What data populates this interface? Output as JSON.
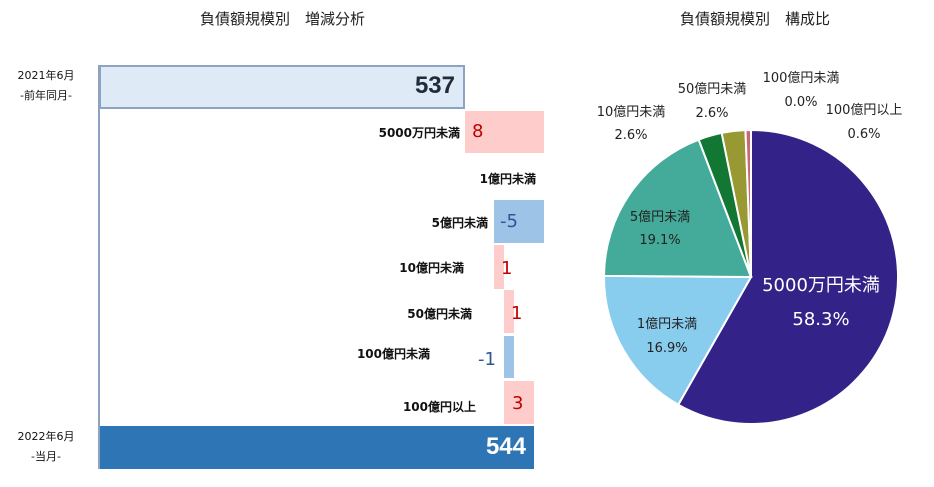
{
  "waterfall": {
    "title": "負債額規模別　増減分析",
    "start": {
      "period": "2021年6月",
      "sub": "-前年同月-",
      "value": "537"
    },
    "end": {
      "period": "2022年6月",
      "sub": "-当月-",
      "value": "544"
    },
    "steps": [
      {
        "label": "5000万円未満",
        "value": "8"
      },
      {
        "label": "1億円未満",
        "value": ""
      },
      {
        "label": "5億円未満",
        "value": "-5"
      },
      {
        "label": "10億円未満",
        "value": "1"
      },
      {
        "label": "50億円未満",
        "value": "1"
      },
      {
        "label": "100億円未満",
        "value": "-1"
      },
      {
        "label": "100億円以上",
        "value": "3"
      }
    ]
  },
  "pie": {
    "title": "負債額規模別　構成比",
    "slices": [
      {
        "label": "5000万円未満",
        "pct": "58.3%",
        "color": "#332288"
      },
      {
        "label": "1億円未満",
        "pct": "16.9%",
        "color": "#88ccee"
      },
      {
        "label": "5億円未満",
        "pct": "19.1%",
        "color": "#44aa99"
      },
      {
        "label": "10億円未満",
        "pct": "2.6%",
        "color": "#117733"
      },
      {
        "label": "50億円未満",
        "pct": "2.6%",
        "color": "#999933"
      },
      {
        "label": "100億円未満",
        "pct": "0.0%",
        "color": "#882255"
      },
      {
        "label": "100億円以上",
        "pct": "0.6%",
        "color": "#cc6677"
      }
    ]
  },
  "chart_data": [
    {
      "type": "bar",
      "subtype": "waterfall",
      "title": "負債額規模別　増減分析",
      "categories": [
        "2021年6月 -前年同月-",
        "5000万円未満",
        "1億円未満",
        "5億円未満",
        "10億円未満",
        "50億円未満",
        "100億円未満",
        "100億円以上",
        "2022年6月 -当月-"
      ],
      "values": [
        537,
        8,
        0,
        -5,
        1,
        1,
        -1,
        3,
        544
      ],
      "orientation": "horizontal",
      "colors": {
        "total_start": "#deebf7",
        "increase": "#ffcccc",
        "decrease": "#9dc3e6",
        "total_end": "#2e75b6"
      }
    },
    {
      "type": "pie",
      "title": "負債額規模別　構成比",
      "categories": [
        "5000万円未満",
        "1億円未満",
        "5億円未満",
        "10億円未満",
        "50億円未満",
        "100億円未満",
        "100億円以上"
      ],
      "values": [
        58.3,
        16.9,
        19.1,
        2.6,
        2.6,
        0.0,
        0.6
      ],
      "unit": "%"
    }
  ]
}
